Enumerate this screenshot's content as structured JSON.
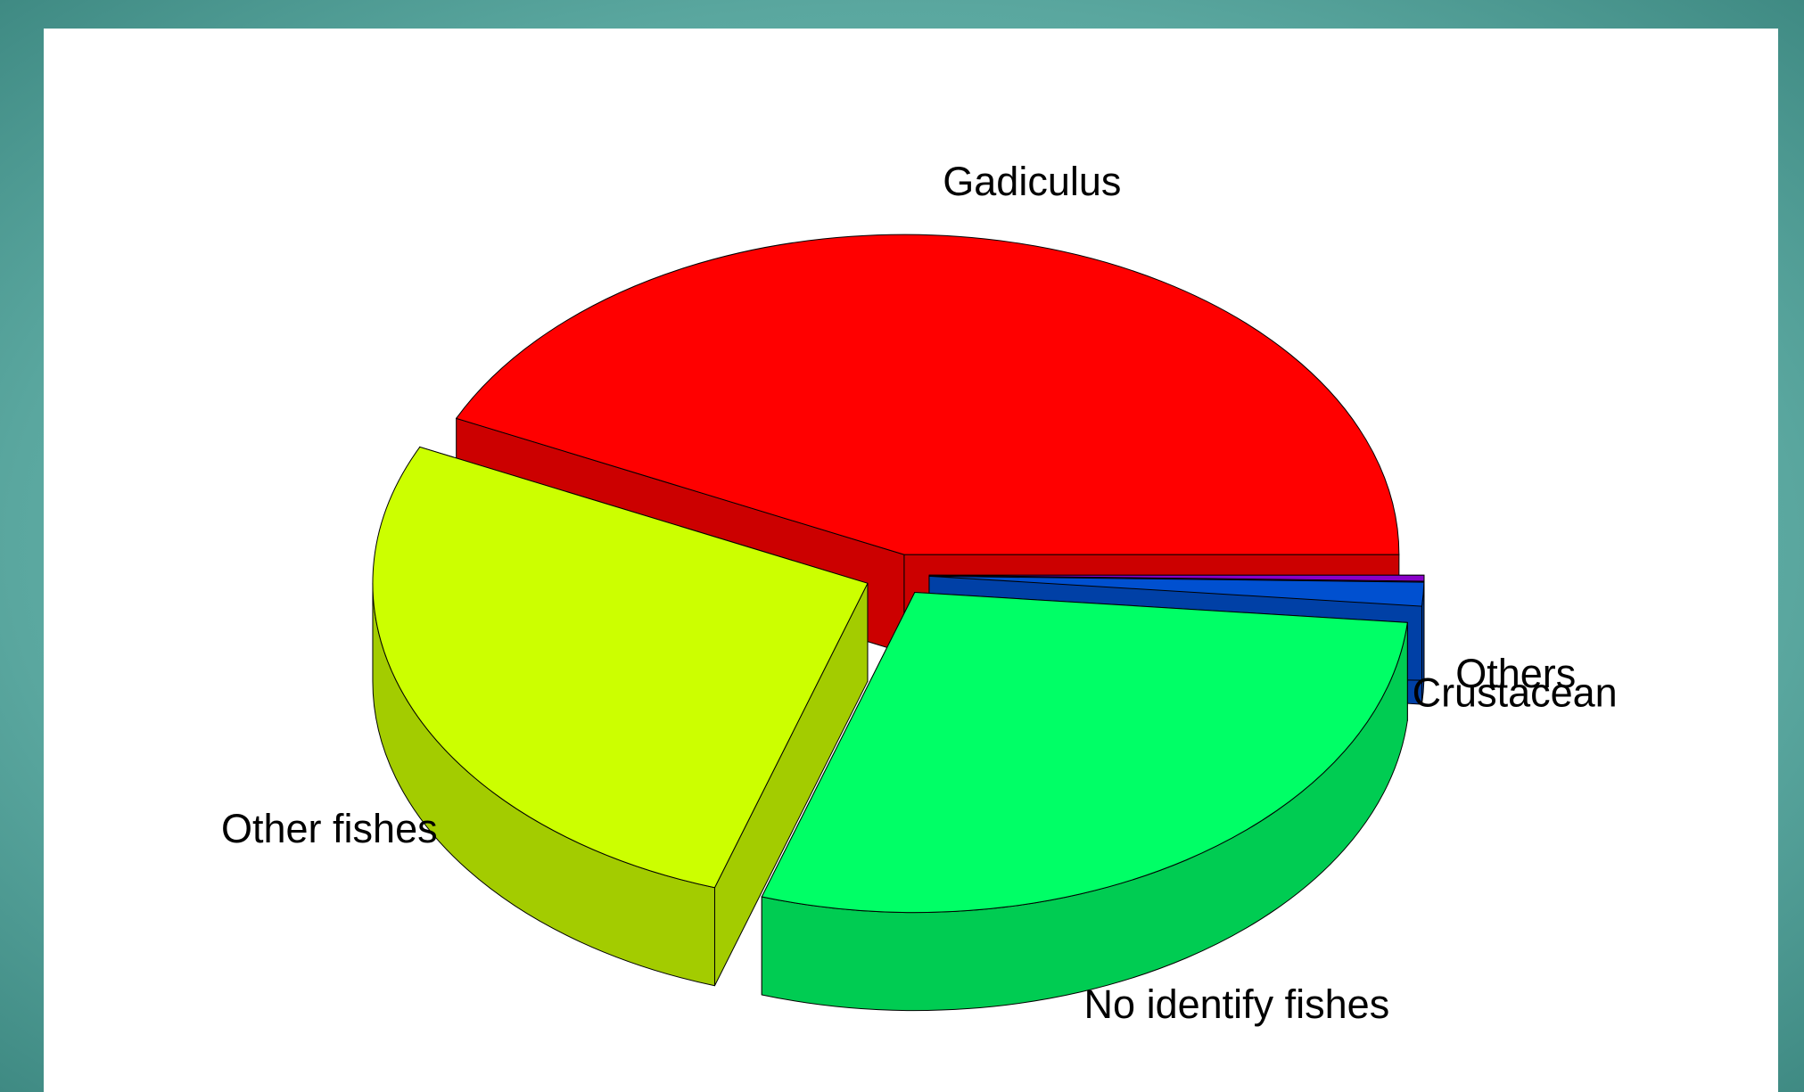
{
  "chart_data": {
    "type": "pie3d",
    "categories": [
      "Gadiculus",
      "Other fishes",
      "No identify fishes",
      "Crustacean",
      "Others"
    ],
    "values": [
      43,
      27,
      28.5,
      1.2,
      0.3
    ],
    "colors": [
      "#ff0000",
      "#ccff00",
      "#00ff66",
      "#0050d0",
      "#8a00c8"
    ]
  }
}
